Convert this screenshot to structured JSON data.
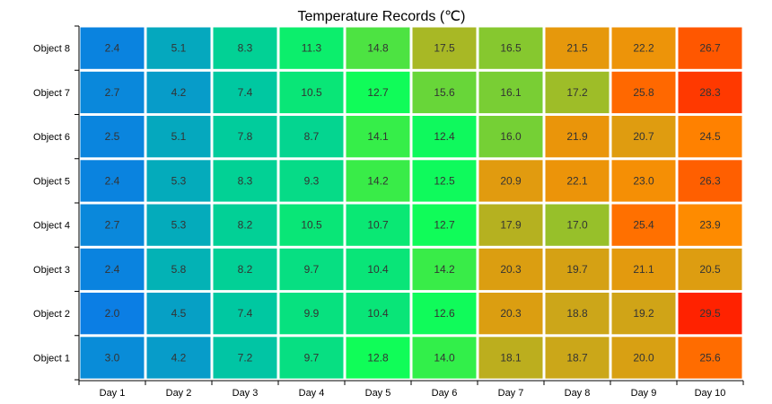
{
  "chart_data": {
    "type": "heatmap",
    "title": "Temperature Records (℃)",
    "xlabel": "",
    "ylabel": "",
    "x_categories": [
      "Day 1",
      "Day 2",
      "Day 3",
      "Day 4",
      "Day 5",
      "Day 6",
      "Day 7",
      "Day 8",
      "Day 9",
      "Day 10"
    ],
    "y_categories": [
      "Object 1",
      "Object 2",
      "Object 3",
      "Object 4",
      "Object 5",
      "Object 6",
      "Object 7",
      "Object 8"
    ],
    "values": [
      [
        3.0,
        4.2,
        7.2,
        9.7,
        12.8,
        14.0,
        18.1,
        18.7,
        20.0,
        25.6
      ],
      [
        2.0,
        4.5,
        7.4,
        9.9,
        10.4,
        12.6,
        20.3,
        18.8,
        19.2,
        29.5
      ],
      [
        2.4,
        5.8,
        8.2,
        9.7,
        10.4,
        14.2,
        20.3,
        19.7,
        21.1,
        20.5
      ],
      [
        2.7,
        5.3,
        8.2,
        10.5,
        10.7,
        12.7,
        17.9,
        17.0,
        25.4,
        23.9
      ],
      [
        2.4,
        5.3,
        8.3,
        9.3,
        14.2,
        12.5,
        20.9,
        22.1,
        23.0,
        26.3
      ],
      [
        2.5,
        5.1,
        7.8,
        8.7,
        14.1,
        12.4,
        16.0,
        21.9,
        20.7,
        24.5
      ],
      [
        2.7,
        4.2,
        7.4,
        10.5,
        12.7,
        15.6,
        16.1,
        17.2,
        25.8,
        28.3
      ],
      [
        2.4,
        5.1,
        8.3,
        11.3,
        14.8,
        17.5,
        16.5,
        21.5,
        22.2,
        26.7
      ]
    ],
    "value_range": [
      2.0,
      29.5
    ],
    "color_scale": [
      "#0b7ee4",
      "#00c9a0",
      "#11ff55",
      "#c9a81a",
      "#ff8a00",
      "#ff2200"
    ],
    "grid": true,
    "legend": "none"
  }
}
